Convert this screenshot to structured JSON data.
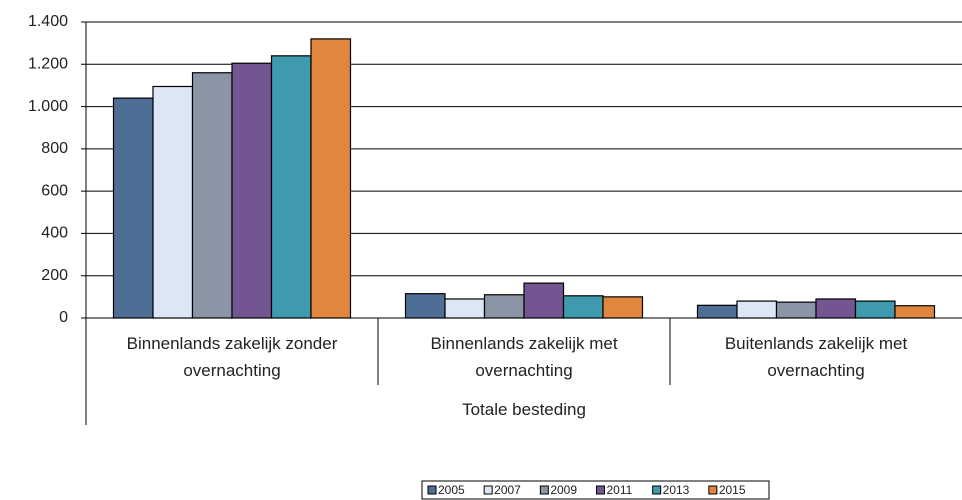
{
  "chart_data": {
    "type": "bar",
    "categories": [
      "Binnenlands zakelijk zonder overnachting",
      "Binnenlands zakelijk met overnachting",
      "Buitenlands zakelijk met overnachting"
    ],
    "group_label": "Totale besteding",
    "series": [
      {
        "name": "2005",
        "color": "#4e6e96",
        "values": [
          1040,
          115,
          60
        ]
      },
      {
        "name": "2007",
        "color": "#dce6f5",
        "values": [
          1095,
          90,
          80
        ]
      },
      {
        "name": "2009",
        "color": "#8a96a6",
        "values": [
          1160,
          110,
          75
        ]
      },
      {
        "name": "2011",
        "color": "#725591",
        "values": [
          1205,
          165,
          90
        ]
      },
      {
        "name": "2013",
        "color": "#3f9aad",
        "values": [
          1240,
          105,
          80
        ]
      },
      {
        "name": "2015",
        "color": "#e0863f",
        "values": [
          1320,
          100,
          58
        ]
      }
    ],
    "ylim": [
      0,
      1400
    ],
    "yticks": [
      0,
      200,
      400,
      600,
      800,
      {
        "value": 1000,
        "label": "1.000"
      },
      {
        "value": 1200,
        "label": "1.200"
      },
      {
        "value": 1400,
        "label": "1.400"
      }
    ],
    "grid": true,
    "legend": "bottom"
  }
}
